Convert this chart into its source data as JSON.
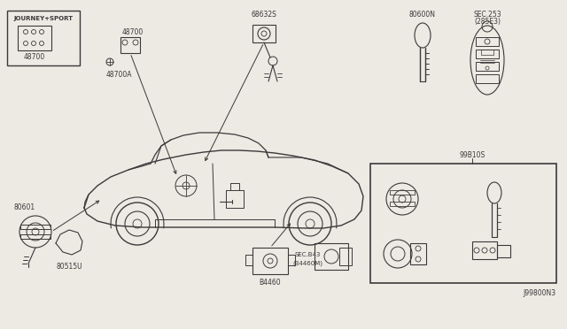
{
  "bg_color": "#ede9e3",
  "line_color": "#3a3a3a",
  "labels": {
    "journey_sport": "JOURNEY+SPORT",
    "p48700_box": "48700",
    "p48700": "48700",
    "p48700a": "48700A",
    "p68632s": "68632S",
    "p80600n": "80600N",
    "sec253": "SEC.253",
    "sec253b": "(285E3)",
    "p99b10s": "99B10S",
    "p80601": "80601",
    "p80515u": "80515U",
    "p84460": "B4460",
    "sec_b43": "SEC.B43",
    "sec_b43b": "(B4460M)",
    "j99800n3": "J99800N3"
  }
}
